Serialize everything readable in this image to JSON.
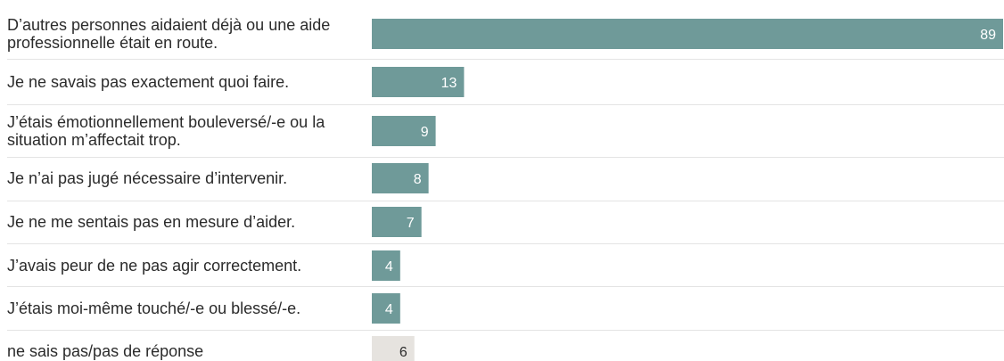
{
  "chart_data": {
    "type": "bar",
    "orientation": "horizontal",
    "categories": [
      [
        "D’autres personnes aidaient déjà ou une aide",
        "professionnelle était en route."
      ],
      [
        "Je ne savais pas exactement quoi faire."
      ],
      [
        "J’étais émotionnellement bouleversé/-e ou la",
        "situation m’affectait trop."
      ],
      [
        "Je n’ai pas jugé nécessaire d’intervenir."
      ],
      [
        "Je ne me sentais pas en mesure d’aider."
      ],
      [
        "J’avais peur de ne pas agir correctement."
      ],
      [
        "J’étais moi-même touché/-e ou blessé/-e."
      ],
      [
        "ne sais pas/pas de réponse"
      ]
    ],
    "values": [
      89,
      13,
      9,
      8,
      7,
      4,
      4,
      6
    ],
    "value_labels": [
      "89",
      "13",
      "9",
      "8",
      "7",
      "4",
      "4",
      "6"
    ],
    "bar_colors": [
      "#6f9a99",
      "#6f9a99",
      "#6f9a99",
      "#6f9a99",
      "#6f9a99",
      "#6f9a99",
      "#6f9a99",
      "#e6e3df"
    ],
    "value_label_colors": [
      "#ffffff",
      "#ffffff",
      "#ffffff",
      "#ffffff",
      "#ffffff",
      "#ffffff",
      "#ffffff",
      "#2b2b2b"
    ],
    "xlim": [
      0,
      89
    ],
    "grid": false,
    "legend": "none",
    "title": "",
    "xlabel": "",
    "ylabel": ""
  }
}
